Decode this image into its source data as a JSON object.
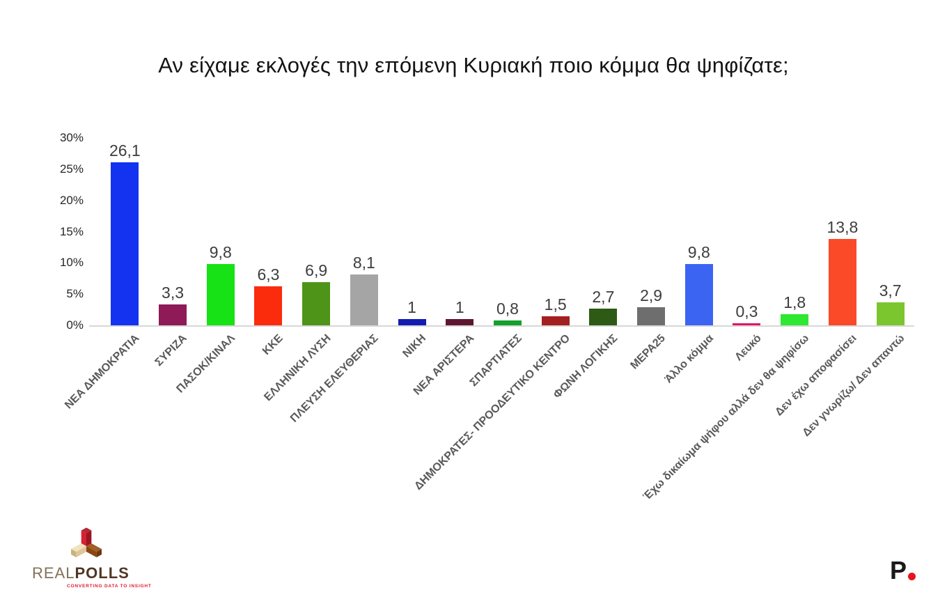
{
  "title": "Αν είχαμε εκλογές την επόμενη Κυριακή ποιο κόμμα θα ψηφίζατε;",
  "chart_data": {
    "type": "bar",
    "title": "Αν είχαμε εκλογές την επόμενη Κυριακή ποιο κόμμα θα ψηφίζατε;",
    "categories": [
      "ΝΕΑ ΔΗΜΟΚΡΑΤΙΑ",
      "ΣΥΡΙΖΑ",
      "ΠΑΣΟΚ/ΚΙΝΑΛ",
      "ΚΚΕ",
      "ΕΛΛΗΝΙΚΗ ΛΥΣΗ",
      "ΠΛΕΥΣΗ ΕΛΕΥΘΕΡΙΑΣ",
      "ΝΙΚΗ",
      "ΝΕΑ ΑΡΙΣΤΕΡΑ",
      "ΣΠΑΡΤΙΑΤΕΣ",
      "ΔΗΜΟΚΡΑΤΕΣ- ΠΡΟΟΔΕΥΤΙΚΟ ΚΕΝΤΡΟ",
      "ΦΩΝΗ ΛΟΓΙΚΗΣ",
      "ΜΕΡΑ25",
      "Άλλο κόμμα",
      "Λευκό",
      "Έχω δικαίωμα ψήφου αλλά δεν θα ψηφίσω",
      "Δεν έχω αποφασίσει",
      "Δεν γνωρίζω/ Δεν απαντώ"
    ],
    "values": [
      26.1,
      3.3,
      9.8,
      6.3,
      6.9,
      8.1,
      1,
      1,
      0.8,
      1.5,
      2.7,
      2.9,
      9.8,
      0.3,
      1.8,
      13.8,
      3.7
    ],
    "value_labels": [
      "26,1",
      "3,3",
      "9,8",
      "6,3",
      "6,9",
      "8,1",
      "1",
      "1",
      "0,8",
      "1,5",
      "2,7",
      "2,9",
      "9,8",
      "0,3",
      "1,8",
      "13,8",
      "3,7"
    ],
    "bar_colors": [
      "#1433f0",
      "#8e1a57",
      "#16e216",
      "#fa2c0c",
      "#4e9418",
      "#a5a5a5",
      "#121cb0",
      "#5e1630",
      "#13a02c",
      "#a32020",
      "#2d5a14",
      "#6e6e6e",
      "#3c64f2",
      "#e01468",
      "#2ee831",
      "#fa4a28",
      "#7bc62e"
    ],
    "y_ticks": [
      {
        "label": "30%",
        "value": 30
      },
      {
        "label": "25%",
        "value": 25
      },
      {
        "label": "20%",
        "value": 20
      },
      {
        "label": "15%",
        "value": 15
      },
      {
        "label": "10%",
        "value": 10
      },
      {
        "label": "5%",
        "value": 5
      },
      {
        "label": "0%",
        "value": 0
      }
    ],
    "ylim": [
      0,
      30
    ],
    "grid": false,
    "legend": false,
    "xlabel": "",
    "ylabel": ""
  },
  "branding": {
    "realpolls": {
      "logo_icon": "three-cubes",
      "word_light": "REAL",
      "word_dark": "POLLS",
      "tagline": "CONVERTING DATA TO INSIGHT"
    },
    "publisher": {
      "letter": "P",
      "dot_color": "#e8131d"
    }
  },
  "colors": {
    "background": "#ffffff",
    "axis_label": "#262626",
    "value_label": "#3d3d3d",
    "category_label": "#595959",
    "baseline": "#d7d7d7"
  }
}
